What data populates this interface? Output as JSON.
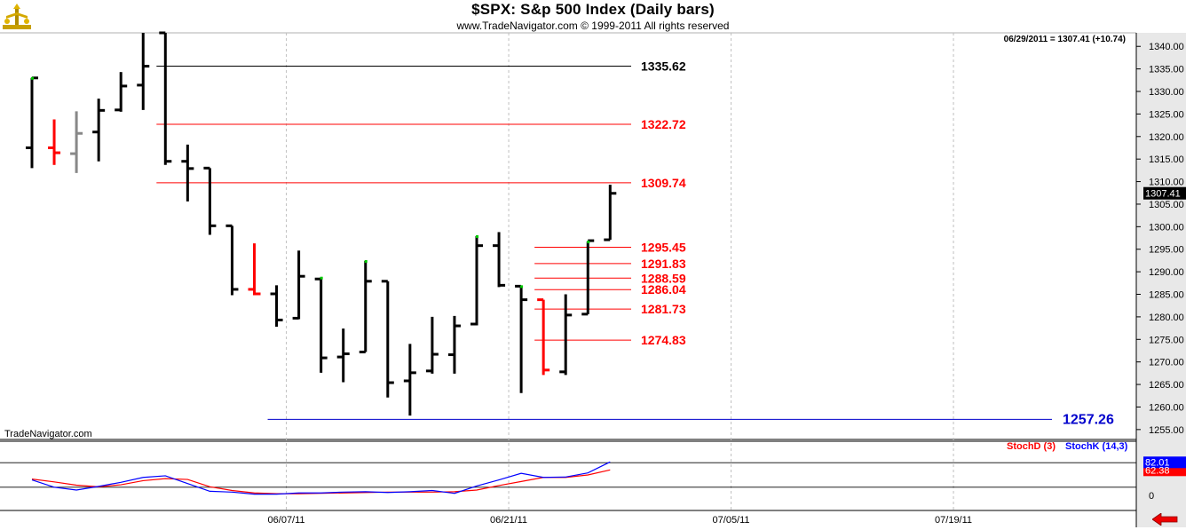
{
  "header": {
    "title": "$SPX:  S&p 500 Index  (Daily bars)",
    "subtitle": "www.TradeNavigator.com © 1999-2011 All rights reserved",
    "watermark": "TradeNavigator.com",
    "readout": "06/29/2011 = 1307.41 (+10.74)"
  },
  "colors": {
    "up": "#000000",
    "down": "#ff0000",
    "neutral": "#888888",
    "stochD": "#ff0000",
    "stochK": "#0000ff",
    "axis_bg": "#e8e8e8",
    "last_price_bg": "#000000",
    "level_black": "#000000",
    "level_red": "#ff0000",
    "level_blue": "#0000cc"
  },
  "chart_data": [
    {
      "type": "ohlc",
      "title": "$SPX:  S&p 500 Index  (Daily bars)",
      "ylim": [
        1253,
        1343
      ],
      "y_ticks": [
        1255,
        1260,
        1265,
        1270,
        1275,
        1280,
        1285,
        1290,
        1295,
        1300,
        1305,
        1310,
        1315,
        1320,
        1325,
        1330,
        1335,
        1340
      ],
      "x_tick_labels": [
        "06/07/11",
        "06/21/11",
        "07/05/11",
        "07/19/11"
      ],
      "last_price": "1307.41",
      "bars": [
        {
          "o": 1317.5,
          "h": 1333.0,
          "l": 1313.0,
          "c": 1333.0,
          "color": "up",
          "green": true
        },
        {
          "o": 1317.5,
          "h": 1323.8,
          "l": 1313.7,
          "c": 1316.4,
          "color": "down"
        },
        {
          "o": 1316.2,
          "h": 1325.6,
          "l": 1311.9,
          "c": 1320.7,
          "color": "neutral"
        },
        {
          "o": 1321.0,
          "h": 1328.4,
          "l": 1314.5,
          "c": 1325.8,
          "color": "up"
        },
        {
          "o": 1325.9,
          "h": 1334.3,
          "l": 1325.5,
          "c": 1331.2,
          "color": "up"
        },
        {
          "o": 1331.4,
          "h": 1343.0,
          "l": 1325.9,
          "c": 1335.6,
          "color": "up"
        },
        {
          "o": 1343.0,
          "h": 1343.0,
          "l": 1313.7,
          "c": 1314.5,
          "color": "up"
        },
        {
          "o": 1314.5,
          "h": 1318.2,
          "l": 1305.6,
          "c": 1312.9,
          "color": "up"
        },
        {
          "o": 1313.0,
          "h": 1313.0,
          "l": 1298.2,
          "c": 1300.2,
          "color": "up"
        },
        {
          "o": 1300.2,
          "h": 1300.2,
          "l": 1284.8,
          "c": 1286.1,
          "color": "up"
        },
        {
          "o": 1286.1,
          "h": 1296.3,
          "l": 1284.8,
          "c": 1285.1,
          "color": "down"
        },
        {
          "o": 1285.1,
          "h": 1287.0,
          "l": 1277.8,
          "c": 1279.3,
          "color": "up"
        },
        {
          "o": 1279.7,
          "h": 1294.7,
          "l": 1279.5,
          "c": 1289.0,
          "color": "up"
        },
        {
          "o": 1288.4,
          "h": 1288.7,
          "l": 1267.6,
          "c": 1270.9,
          "color": "up",
          "green": true
        },
        {
          "o": 1271.1,
          "h": 1277.4,
          "l": 1265.5,
          "c": 1271.8,
          "color": "up"
        },
        {
          "o": 1272.2,
          "h": 1292.4,
          "l": 1272.2,
          "c": 1287.9,
          "color": "up",
          "green": true
        },
        {
          "o": 1287.9,
          "h": 1287.9,
          "l": 1262.1,
          "c": 1265.4,
          "color": "up"
        },
        {
          "o": 1265.8,
          "h": 1274.0,
          "l": 1258.1,
          "c": 1267.6,
          "color": "up"
        },
        {
          "o": 1268.0,
          "h": 1280.0,
          "l": 1267.4,
          "c": 1271.7,
          "color": "up"
        },
        {
          "o": 1271.6,
          "h": 1280.2,
          "l": 1267.4,
          "c": 1278.0,
          "color": "up"
        },
        {
          "o": 1278.4,
          "h": 1297.9,
          "l": 1278.1,
          "c": 1295.8,
          "color": "up",
          "green": true
        },
        {
          "o": 1295.8,
          "h": 1298.8,
          "l": 1286.6,
          "c": 1287.0,
          "color": "up"
        },
        {
          "o": 1286.8,
          "h": 1286.8,
          "l": 1263.1,
          "c": 1283.8,
          "color": "up",
          "green": true
        },
        {
          "o": 1283.8,
          "h": 1283.8,
          "l": 1267.1,
          "c": 1268.2,
          "color": "down"
        },
        {
          "o": 1267.8,
          "h": 1285.0,
          "l": 1267.1,
          "c": 1280.4,
          "color": "up"
        },
        {
          "o": 1280.6,
          "h": 1296.7,
          "l": 1280.6,
          "c": 1296.9,
          "color": "up",
          "green": true
        },
        {
          "o": 1297.1,
          "h": 1309.3,
          "l": 1297.1,
          "c": 1307.4,
          "color": "up"
        }
      ],
      "levels": [
        {
          "label": "1335.62",
          "value": 1335.62,
          "color": "level_black",
          "from": 6
        },
        {
          "label": "1322.72",
          "value": 1322.72,
          "color": "level_red",
          "from": 6
        },
        {
          "label": "1309.74",
          "value": 1309.74,
          "color": "level_red",
          "from": 6
        },
        {
          "label": "1295.45",
          "value": 1295.45,
          "color": "level_red",
          "from": 23
        },
        {
          "label": "1291.83",
          "value": 1291.83,
          "color": "level_red",
          "from": 23
        },
        {
          "label": "1288.59",
          "value": 1288.59,
          "color": "level_red",
          "from": 23
        },
        {
          "label": "1286.04",
          "value": 1286.04,
          "color": "level_red",
          "from": 23
        },
        {
          "label": "1281.73",
          "value": 1281.73,
          "color": "level_red",
          "from": 23
        },
        {
          "label": "1274.83",
          "value": 1274.83,
          "color": "level_red",
          "from": 23
        },
        {
          "label": "1257.26",
          "value": 1257.26,
          "color": "level_blue",
          "from": 11
        }
      ]
    },
    {
      "type": "line",
      "ylim": [
        0,
        100
      ],
      "y_ticks": [
        0
      ],
      "series": [
        {
          "name": "StochD (3)",
          "color": "stochD",
          "last": "62.38",
          "values": [
            40,
            33,
            25,
            21,
            26,
            36,
            41,
            39,
            21,
            12,
            6,
            4,
            4,
            5,
            6,
            7,
            8,
            8,
            8,
            9,
            13,
            24,
            34,
            44,
            44,
            50,
            62.38
          ]
        },
        {
          "name": "StochK (14,3)",
          "color": "stochK",
          "last": "82.01",
          "values": [
            38,
            20,
            13,
            22,
            32,
            44,
            48,
            29,
            10,
            8,
            3,
            3,
            6,
            6,
            8,
            9,
            7,
            9,
            12,
            5,
            23,
            38,
            54,
            44,
            45,
            55,
            82.01
          ]
        }
      ]
    }
  ]
}
